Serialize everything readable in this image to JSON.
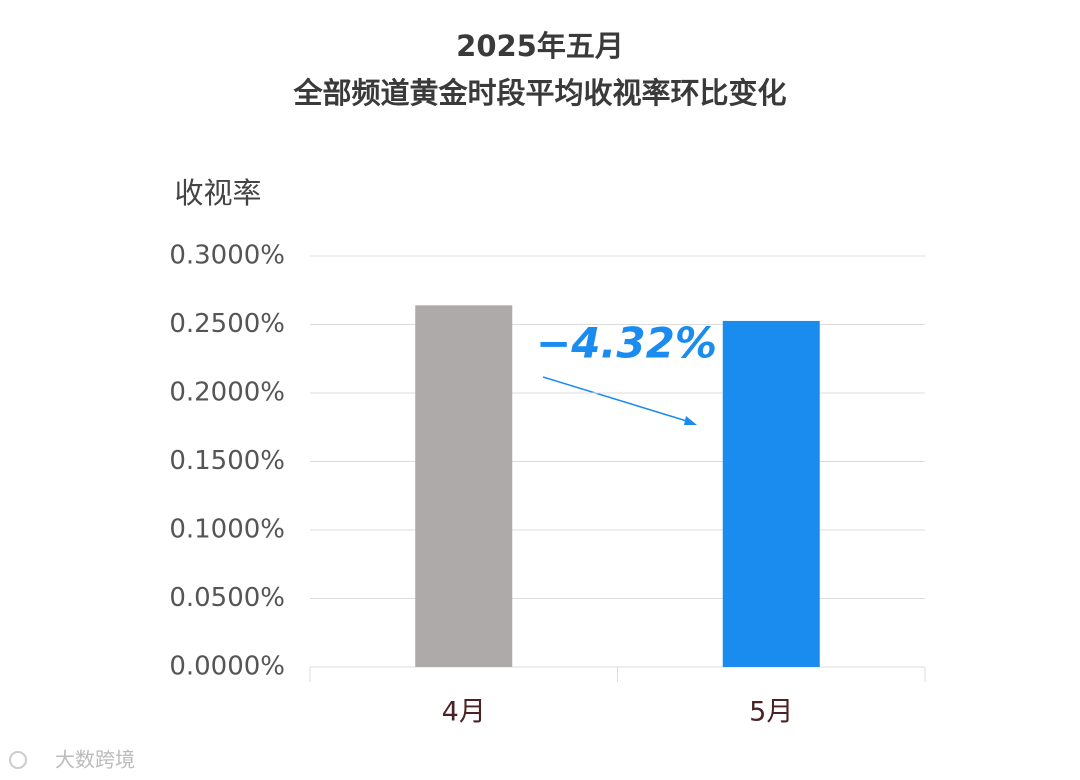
{
  "chart_data": {
    "type": "bar",
    "title": "2025年五月",
    "subtitle": "全部频道黄金时段平均收视率环比变化",
    "y_label": "收视率",
    "annotation": "−4.32%",
    "categories": [
      "4月",
      "5月"
    ],
    "values": [
      0.264,
      0.2526
    ],
    "colors": [
      "#aeaaa9",
      "#1a8cf0"
    ],
    "ylim": [
      0,
      0.3
    ],
    "yticks": [
      {
        "value": 0,
        "label": "0.0000%"
      },
      {
        "value": 0.05,
        "label": "0.0500%"
      },
      {
        "value": 0.1,
        "label": "0.1000%"
      },
      {
        "value": 0.15,
        "label": "0.1500%"
      },
      {
        "value": 0.2,
        "label": "0.2000%"
      },
      {
        "value": 0.25,
        "label": "0.2500%"
      },
      {
        "value": 0.3,
        "label": "0.3000%"
      }
    ],
    "grid": true
  },
  "watermark": "大数跨境"
}
